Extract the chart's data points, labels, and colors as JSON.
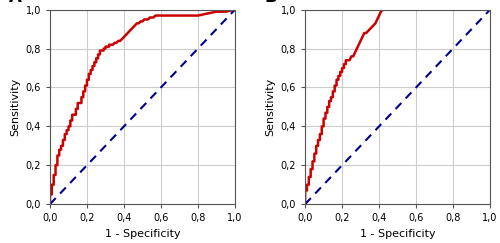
{
  "panel_A_label": "A",
  "panel_B_label": "B",
  "xlabel": "1 - Specificity",
  "ylabel": "Sensitivity",
  "xticks": [
    0.0,
    0.2,
    0.4,
    0.6,
    0.8,
    1.0
  ],
  "yticks": [
    0.0,
    0.2,
    0.4,
    0.6,
    0.8,
    1.0
  ],
  "xticklabels": [
    "0,0",
    "0,2",
    "0,4",
    "0,6",
    "0,8",
    "1,0"
  ],
  "yticklabels": [
    "0,0",
    "0,2",
    "0,4",
    "0,6",
    "0,8",
    "1,0"
  ],
  "roc_color": "#CC0000",
  "diag_color": "#00008B",
  "roc_linewidth": 1.8,
  "diag_linewidth": 1.5,
  "background_color": "#ffffff",
  "grid_color": "#cccccc",
  "panel_label_fontsize": 12,
  "axis_label_fontsize": 8,
  "tick_fontsize": 7,
  "roc_A_x": [
    0.0,
    0.0,
    0.01,
    0.01,
    0.02,
    0.02,
    0.03,
    0.03,
    0.04,
    0.04,
    0.05,
    0.05,
    0.06,
    0.06,
    0.07,
    0.07,
    0.08,
    0.08,
    0.09,
    0.09,
    0.1,
    0.1,
    0.11,
    0.11,
    0.12,
    0.12,
    0.13,
    0.14,
    0.14,
    0.15,
    0.15,
    0.16,
    0.17,
    0.17,
    0.18,
    0.18,
    0.19,
    0.19,
    0.2,
    0.2,
    0.21,
    0.21,
    0.22,
    0.22,
    0.23,
    0.23,
    0.24,
    0.24,
    0.25,
    0.25,
    0.26,
    0.26,
    0.27,
    0.27,
    0.28,
    0.29,
    0.29,
    0.3,
    0.3,
    0.31,
    0.32,
    0.32,
    0.33,
    0.34,
    0.35,
    0.36,
    0.37,
    0.38,
    0.39,
    0.4,
    0.41,
    0.42,
    0.43,
    0.44,
    0.45,
    0.46,
    0.47,
    0.48,
    0.49,
    0.5,
    0.51,
    0.52,
    0.53,
    0.54,
    0.55,
    0.56,
    0.57,
    0.58,
    0.59,
    0.6,
    0.61,
    0.62,
    0.63,
    0.64,
    0.65,
    0.7,
    0.75,
    0.8,
    0.85,
    0.9,
    0.95,
    1.0
  ],
  "roc_A_y": [
    0.0,
    0.05,
    0.05,
    0.1,
    0.1,
    0.15,
    0.15,
    0.2,
    0.2,
    0.25,
    0.25,
    0.28,
    0.28,
    0.3,
    0.3,
    0.33,
    0.33,
    0.36,
    0.36,
    0.38,
    0.38,
    0.4,
    0.4,
    0.43,
    0.43,
    0.46,
    0.46,
    0.46,
    0.49,
    0.49,
    0.52,
    0.52,
    0.52,
    0.55,
    0.55,
    0.58,
    0.58,
    0.61,
    0.61,
    0.64,
    0.64,
    0.67,
    0.67,
    0.69,
    0.69,
    0.71,
    0.71,
    0.73,
    0.73,
    0.75,
    0.75,
    0.77,
    0.77,
    0.79,
    0.79,
    0.79,
    0.8,
    0.8,
    0.81,
    0.81,
    0.81,
    0.82,
    0.82,
    0.82,
    0.83,
    0.83,
    0.84,
    0.84,
    0.85,
    0.86,
    0.87,
    0.88,
    0.89,
    0.9,
    0.91,
    0.92,
    0.93,
    0.93,
    0.94,
    0.94,
    0.95,
    0.95,
    0.95,
    0.96,
    0.96,
    0.96,
    0.97,
    0.97,
    0.97,
    0.97,
    0.97,
    0.97,
    0.97,
    0.97,
    0.97,
    0.97,
    0.97,
    0.97,
    0.98,
    0.99,
    0.99,
    1.0
  ],
  "roc_B_x": [
    0.0,
    0.0,
    0.01,
    0.01,
    0.02,
    0.02,
    0.03,
    0.03,
    0.04,
    0.04,
    0.05,
    0.05,
    0.06,
    0.06,
    0.07,
    0.07,
    0.08,
    0.08,
    0.09,
    0.09,
    0.1,
    0.1,
    0.11,
    0.11,
    0.12,
    0.12,
    0.13,
    0.13,
    0.14,
    0.14,
    0.15,
    0.15,
    0.16,
    0.16,
    0.17,
    0.17,
    0.18,
    0.18,
    0.19,
    0.19,
    0.2,
    0.2,
    0.21,
    0.21,
    0.22,
    0.22,
    0.23,
    0.24,
    0.25,
    0.26,
    0.27,
    0.28,
    0.29,
    0.3,
    0.31,
    0.32,
    0.33,
    0.34,
    0.35,
    0.36,
    0.37,
    0.38,
    0.39,
    0.4,
    0.41,
    0.42,
    0.43,
    0.44,
    0.45,
    0.46,
    0.47,
    0.48,
    0.49,
    0.5,
    0.51,
    0.52,
    0.53,
    0.54,
    0.55,
    0.56,
    0.57,
    0.58,
    0.59,
    0.6,
    0.65,
    0.7,
    0.75,
    0.8,
    0.85,
    0.9,
    0.95,
    1.0
  ],
  "roc_B_y": [
    0.0,
    0.07,
    0.07,
    0.1,
    0.1,
    0.14,
    0.14,
    0.18,
    0.18,
    0.22,
    0.22,
    0.26,
    0.26,
    0.3,
    0.3,
    0.33,
    0.33,
    0.36,
    0.36,
    0.4,
    0.4,
    0.44,
    0.44,
    0.47,
    0.47,
    0.5,
    0.5,
    0.53,
    0.53,
    0.55,
    0.55,
    0.58,
    0.58,
    0.61,
    0.61,
    0.64,
    0.64,
    0.66,
    0.66,
    0.68,
    0.68,
    0.7,
    0.7,
    0.72,
    0.72,
    0.74,
    0.74,
    0.74,
    0.76,
    0.76,
    0.78,
    0.8,
    0.82,
    0.84,
    0.86,
    0.88,
    0.88,
    0.89,
    0.9,
    0.91,
    0.92,
    0.93,
    0.95,
    0.97,
    0.99,
    1.0,
    1.0,
    1.0,
    1.0,
    1.0,
    1.0,
    1.0,
    1.0,
    1.0,
    1.0,
    1.0,
    1.0,
    1.0,
    1.0,
    1.0,
    1.0,
    1.0,
    1.0,
    1.0,
    1.0,
    1.0,
    1.0,
    1.0,
    1.0,
    1.0,
    1.0,
    1.0
  ]
}
